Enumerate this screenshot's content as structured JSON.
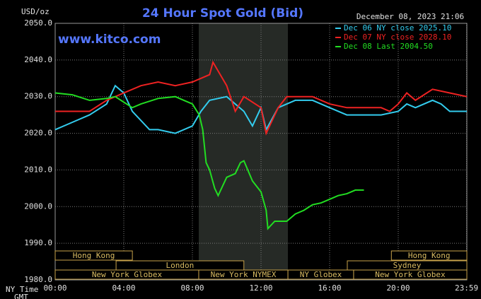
{
  "chart_data": {
    "type": "line",
    "title": "24 Hour Spot Gold (Bid)",
    "website": "www.kitco.com",
    "timestamp": "December 08, 2023 21:06",
    "y_label": "USD/oz",
    "x_label": "NY Time",
    "x_label_2": "GMT",
    "xlim": [
      0,
      24
    ],
    "ylim": [
      1980,
      2050
    ],
    "xticks": [
      {
        "value": 0,
        "label": "00:00"
      },
      {
        "value": 4,
        "label": "04:00"
      },
      {
        "value": 8,
        "label": "08:00"
      },
      {
        "value": 12,
        "label": "12:00"
      },
      {
        "value": 16,
        "label": "16:00"
      },
      {
        "value": 20,
        "label": "20:00"
      },
      {
        "value": 23.983,
        "label": "23:59"
      }
    ],
    "yticks": [
      {
        "value": 1980,
        "label": "1980.0"
      },
      {
        "value": 1990,
        "label": "1990.0"
      },
      {
        "value": 2000,
        "label": "2000.0"
      },
      {
        "value": 2010,
        "label": "2010.0"
      },
      {
        "value": 2020,
        "label": "2020.0"
      },
      {
        "value": 2030,
        "label": "2030.0"
      },
      {
        "value": 2040,
        "label": "2040.0"
      },
      {
        "value": 2050,
        "label": "2050.0"
      }
    ],
    "grid": true,
    "sessions": [
      "Hong Kong",
      "London",
      "New York Globex",
      "New York NYMEX",
      "NY Globex",
      "Sydney",
      "Hong Kong",
      "New York Globex"
    ],
    "series": [
      {
        "name": "Dec 06 NY close 2025.10",
        "color": "#33ccee",
        "x": [
          0,
          1,
          2,
          3,
          3.5,
          4,
          4.5,
          5.5,
          6,
          7,
          8,
          8.5,
          9,
          10,
          10.5,
          11,
          11.5,
          12,
          12.3,
          13,
          14,
          15,
          16,
          17,
          18,
          19,
          20,
          20.5,
          21,
          22,
          22.5,
          23,
          24
        ],
        "values": [
          2021,
          2023,
          2025,
          2028,
          2033,
          2031,
          2026,
          2021,
          2021,
          2020,
          2022,
          2026,
          2029,
          2030,
          2028,
          2026,
          2022,
          2027,
          2021,
          2027,
          2029,
          2029,
          2027,
          2025,
          2025,
          2025,
          2026,
          2028,
          2027,
          2029,
          2028,
          2026,
          2026
        ]
      },
      {
        "name": "Dec 07 NY close 2028.10",
        "color": "#ee2222",
        "x": [
          0,
          1,
          2,
          3,
          4,
          5,
          6,
          7,
          8,
          9,
          9.2,
          10,
          10.5,
          11,
          12,
          12.3,
          13,
          13.5,
          14,
          15,
          16,
          17,
          18,
          19,
          19.5,
          20,
          20.5,
          21,
          22,
          23,
          24
        ],
        "values": [
          2026,
          2026,
          2026,
          2029,
          2031,
          2033,
          2034,
          2033,
          2034,
          2036,
          2039.4,
          2033,
          2026,
          2030,
          2027,
          2020,
          2027,
          2030,
          2030,
          2030,
          2028,
          2027,
          2027,
          2027,
          2026,
          2028,
          2031,
          2029,
          2032,
          2031,
          2030
        ]
      },
      {
        "name": "Dec 08 Last 2004.50",
        "color": "#22dd22",
        "x": [
          0,
          1,
          2,
          3,
          3.5,
          4,
          4.5,
          5,
          6,
          7,
          7.5,
          8,
          8.4,
          8.6,
          8.8,
          9.0,
          9.3,
          9.5,
          10.0,
          10.5,
          10.8,
          11.0,
          11.5,
          12.0,
          12.3,
          12.4,
          12.8,
          13.5,
          14.0,
          14.5,
          15.0,
          15.5,
          16.0,
          16.5,
          17.0,
          17.5,
          18.0
        ],
        "values": [
          2031,
          2030.5,
          2029,
          2029.5,
          2030,
          2028.5,
          2027,
          2028,
          2029.5,
          2030,
          2029,
          2028,
          2025,
          2021,
          2012,
          2010,
          2005,
          2003,
          2008,
          2009,
          2012,
          2012.5,
          2007,
          2004,
          1999,
          1994,
          1996,
          1996,
          1998,
          1999,
          2000.5,
          2001,
          2002,
          2003,
          2003.5,
          2004.5,
          2004.5
        ]
      }
    ]
  }
}
